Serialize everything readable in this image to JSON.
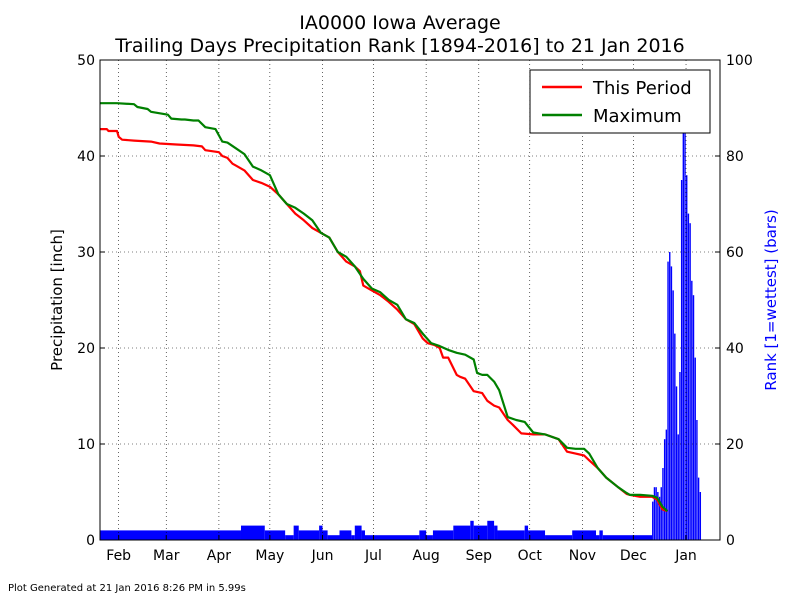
{
  "header": {
    "title_line1": "IA0000 Iowa Average",
    "title_line2": "Trailing Days Precipitation Rank [1894-2016] to 21 Jan 2016"
  },
  "footer": {
    "text": "Plot Generated at 21 Jan 2016 8:26 PM in 5.99s"
  },
  "colors": {
    "this_period": "#ff0000",
    "maximum": "#008000",
    "rank_bars": "#0000ff",
    "rank_axis": "#0000ff"
  },
  "chart_data": {
    "type": "line",
    "xlabel": "",
    "ylabel": "Precipitation [inch]",
    "y2label": "Rank [1=wettest] (bars)",
    "ylim": [
      0,
      50
    ],
    "y2lim": [
      0,
      100
    ],
    "xlim": [
      0,
      365
    ],
    "yticks": [
      0,
      10,
      20,
      30,
      40,
      50
    ],
    "y2ticks": [
      0,
      20,
      40,
      60,
      80,
      100
    ],
    "grid": true,
    "legend": "top-right",
    "months": [
      {
        "label": "Feb",
        "day": 11
      },
      {
        "label": "Mar",
        "day": 39
      },
      {
        "label": "Apr",
        "day": 70
      },
      {
        "label": "May",
        "day": 100
      },
      {
        "label": "Jun",
        "day": 131
      },
      {
        "label": "Jul",
        "day": 161
      },
      {
        "label": "Aug",
        "day": 192
      },
      {
        "label": "Sep",
        "day": 223
      },
      {
        "label": "Oct",
        "day": 253
      },
      {
        "label": "Nov",
        "day": 284
      },
      {
        "label": "Dec",
        "day": 314
      },
      {
        "label": "Jan",
        "day": 345
      }
    ],
    "series": [
      {
        "name": "This Period",
        "color": "#ff0000",
        "x": [
          0,
          4,
          5,
          10,
          11,
          13,
          20,
          30,
          35,
          45,
          55,
          60,
          62,
          70,
          72,
          75,
          78,
          80,
          85,
          90,
          95,
          100,
          105,
          110,
          115,
          120,
          125,
          130,
          135,
          140,
          145,
          150,
          153,
          155,
          160,
          165,
          170,
          175,
          180,
          185,
          190,
          193,
          197,
          200,
          202,
          205,
          210,
          212,
          215,
          220,
          225,
          228,
          232,
          235,
          240,
          243,
          248,
          255,
          262,
          270,
          275,
          280,
          285,
          288,
          293,
          298,
          305,
          310,
          312,
          318,
          325,
          328,
          331,
          334
        ],
        "y": [
          42.8,
          42.8,
          42.6,
          42.6,
          42.0,
          41.7,
          41.6,
          41.5,
          41.3,
          41.2,
          41.1,
          41.0,
          40.6,
          40.4,
          40.0,
          39.8,
          39.2,
          39.0,
          38.5,
          37.5,
          37.2,
          36.8,
          36.0,
          35.0,
          34.0,
          33.3,
          32.5,
          32.0,
          31.5,
          30.0,
          29.0,
          28.5,
          28.0,
          26.5,
          26.0,
          25.5,
          24.8,
          24.0,
          23.0,
          22.5,
          21.0,
          20.5,
          20.3,
          20.0,
          19.0,
          19.0,
          17.2,
          17.0,
          16.8,
          15.5,
          15.3,
          14.5,
          14.0,
          13.8,
          12.5,
          12.0,
          11.1,
          11.0,
          11.0,
          10.5,
          9.2,
          9.0,
          8.8,
          8.3,
          7.5,
          6.5,
          5.5,
          4.8,
          4.7,
          4.5,
          4.5,
          4.2,
          3.2,
          3.0
        ]
      },
      {
        "name": "Maximum",
        "color": "#008000",
        "x": [
          0,
          10,
          20,
          22,
          28,
          30,
          40,
          42,
          48,
          50,
          55,
          58,
          62,
          68,
          72,
          75,
          80,
          85,
          90,
          95,
          100,
          105,
          110,
          115,
          120,
          125,
          130,
          135,
          140,
          145,
          150,
          155,
          160,
          165,
          170,
          175,
          180,
          185,
          190,
          195,
          200,
          205,
          210,
          215,
          220,
          222,
          225,
          228,
          232,
          235,
          240,
          245,
          250,
          255,
          262,
          270,
          275,
          280,
          285,
          288,
          293,
          298,
          305,
          310,
          312,
          318,
          325,
          328,
          331,
          334
        ],
        "y": [
          45.5,
          45.5,
          45.4,
          45.1,
          44.9,
          44.6,
          44.3,
          43.9,
          43.8,
          43.8,
          43.7,
          43.7,
          43.0,
          42.8,
          41.5,
          41.4,
          40.8,
          40.2,
          38.9,
          38.5,
          38.0,
          36.0,
          35.0,
          34.6,
          34.0,
          33.3,
          32.0,
          31.5,
          30.0,
          29.5,
          28.5,
          27.2,
          26.2,
          25.8,
          25.0,
          24.5,
          23.0,
          22.6,
          21.5,
          20.5,
          20.2,
          19.8,
          19.5,
          19.3,
          18.8,
          17.4,
          17.2,
          17.2,
          16.5,
          15.6,
          12.8,
          12.5,
          12.3,
          11.2,
          11.0,
          10.5,
          9.6,
          9.5,
          9.5,
          9.0,
          7.5,
          6.5,
          5.5,
          4.9,
          4.7,
          4.7,
          4.6,
          4.4,
          3.5,
          3.0
        ]
      }
    ],
    "rank_bars": {
      "name": "Rank [1=wettest] (bars)",
      "color": "#0000ff",
      "segments": [
        [
          0,
          83,
          2
        ],
        [
          83,
          97,
          3
        ],
        [
          97,
          109,
          2
        ],
        [
          109,
          114,
          1
        ],
        [
          114,
          117,
          3
        ],
        [
          117,
          129,
          2
        ],
        [
          129,
          131,
          3
        ],
        [
          131,
          134,
          2
        ],
        [
          134,
          141,
          1
        ],
        [
          141,
          148,
          2
        ],
        [
          148,
          150,
          1
        ],
        [
          150,
          154,
          3
        ],
        [
          154,
          156,
          2
        ],
        [
          156,
          188,
          1
        ],
        [
          188,
          192,
          2
        ],
        [
          192,
          196,
          1
        ],
        [
          196,
          208,
          2
        ],
        [
          208,
          218,
          3
        ],
        [
          218,
          220,
          4
        ],
        [
          220,
          228,
          3
        ],
        [
          228,
          232,
          4
        ],
        [
          232,
          234,
          3
        ],
        [
          234,
          250,
          2
        ],
        [
          250,
          252,
          3
        ],
        [
          252,
          262,
          2
        ],
        [
          262,
          278,
          1
        ],
        [
          278,
          292,
          2
        ],
        [
          292,
          294,
          1
        ],
        [
          294,
          296,
          2
        ],
        [
          296,
          325,
          1
        ]
      ],
      "x": [
        325,
        326,
        327,
        328,
        329,
        330,
        331,
        332,
        333,
        334,
        335,
        336,
        337,
        338,
        339,
        340,
        341,
        342,
        343,
        344,
        345,
        346,
        347,
        348,
        349,
        350,
        351,
        352,
        353,
        354,
        355,
        356,
        357,
        358,
        359,
        360,
        361,
        362,
        363,
        364
      ],
      "values": [
        8,
        11,
        11,
        10,
        9,
        11,
        15,
        21,
        23,
        58,
        60,
        57,
        52,
        43,
        32,
        22,
        35,
        75,
        94,
        87,
        76,
        68,
        66,
        54,
        51,
        38,
        25,
        13,
        10,
        0,
        0,
        0,
        0,
        0,
        0,
        0,
        0,
        0,
        0,
        0
      ]
    }
  }
}
